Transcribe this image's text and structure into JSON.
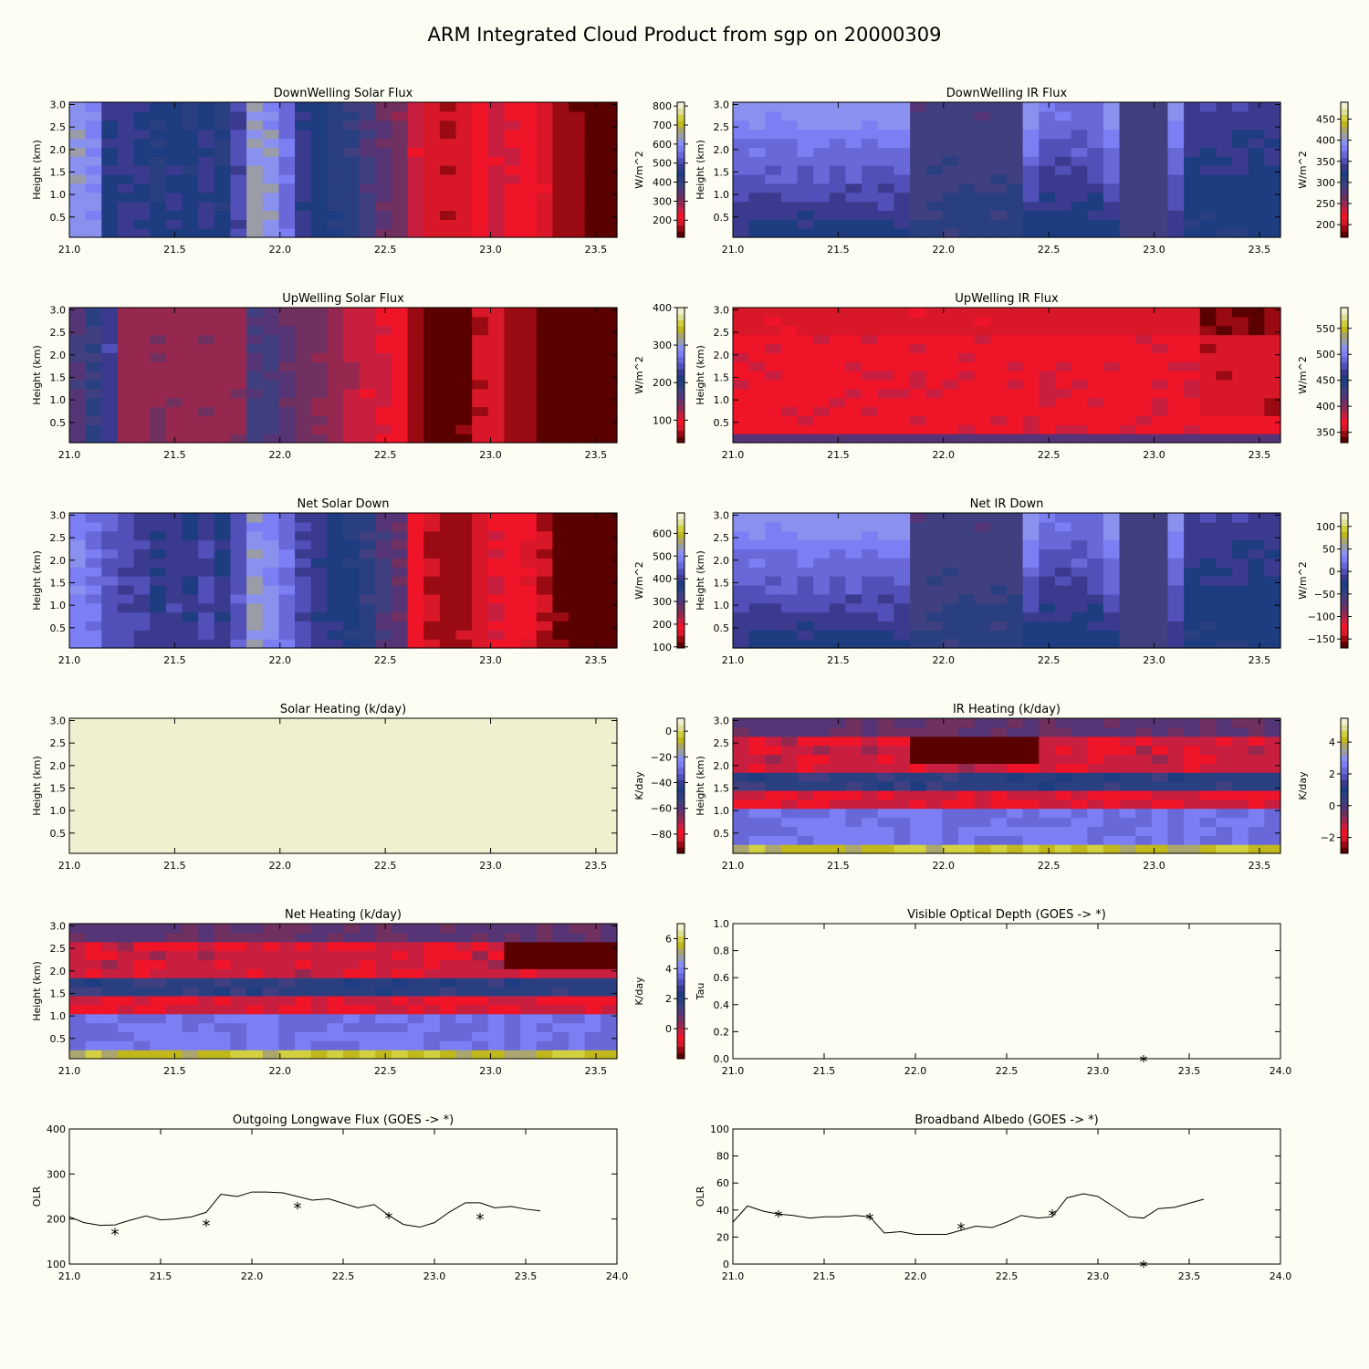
{
  "figure_title": "ARM Integrated Cloud Product from sgp on 20000309",
  "colors": {
    "background": "#fdfdf3",
    "colormap": [
      "#5a0000",
      "#9a0a12",
      "#d81828",
      "#f01428",
      "#c81e40",
      "#962850",
      "#703060",
      "#553575",
      "#404080",
      "#2a3f80",
      "#1e3c80",
      "#3a3a8f",
      "#5050b8",
      "#6868d8",
      "#7c7ef4",
      "#8a90ee",
      "#9a9ca8",
      "#aaa66e",
      "#c0b81c",
      "#d0d040",
      "#e0e098",
      "#f0f0d0"
    ]
  },
  "chart_data": [
    {
      "type": "heatmap",
      "title": "DownWelling Solar Flux",
      "ylabel": "Height (km)",
      "xlim": [
        21.0,
        23.6
      ],
      "ylim": [
        0.05,
        3.05
      ],
      "x_ticks": [
        "21.0",
        "21.5",
        "22.0",
        "22.5",
        "23.0",
        "23.5"
      ],
      "y_ticks": [
        "0.5",
        "1.0",
        "1.5",
        "2.0",
        "2.5",
        "3.0"
      ],
      "colorbar": {
        "label": "W/m^2",
        "ticks": [
          "200",
          "300",
          "400",
          "500",
          "600",
          "700",
          "800"
        ],
        "range": [
          110,
          820
        ]
      },
      "column_values": [
        620,
        600,
        460,
        480,
        470,
        440,
        460,
        450,
        470,
        440,
        510,
        630,
        620,
        560,
        480,
        450,
        420,
        410,
        380,
        340,
        320,
        250,
        200,
        180,
        190,
        220,
        250,
        240,
        230,
        200,
        160,
        150,
        130,
        120
      ]
    },
    {
      "type": "heatmap",
      "title": "DownWelling IR Flux",
      "ylabel": "Height (km)",
      "xlim": [
        21.0,
        23.6
      ],
      "ylim": [
        0.05,
        3.05
      ],
      "x_ticks": [
        "21.0",
        "21.5",
        "22.0",
        "22.5",
        "23.0",
        "23.5"
      ],
      "y_ticks": [
        "0.5",
        "1.0",
        "1.5",
        "2.0",
        "2.5",
        "3.0"
      ],
      "colorbar": {
        "label": "W/m^2",
        "ticks": [
          "200",
          "250",
          "300",
          "350",
          "400",
          "450"
        ],
        "range": [
          170,
          490
        ]
      }
    },
    {
      "type": "heatmap",
      "title": "UpWelling Solar Flux",
      "ylabel": "Height (km)",
      "xlim": [
        21.0,
        23.6
      ],
      "ylim": [
        0.05,
        3.05
      ],
      "x_ticks": [
        "21.0",
        "21.5",
        "22.0",
        "22.5",
        "23.0",
        "23.5"
      ],
      "y_ticks": [
        "0.5",
        "1.0",
        "1.5",
        "2.0",
        "2.5",
        "3.0"
      ],
      "colorbar": {
        "label": "W/m^2",
        "ticks": [
          "100",
          "200",
          "300",
          "400"
        ],
        "range": [
          40,
          400
        ]
      },
      "column_values": [
        170,
        190,
        230,
        130,
        130,
        140,
        135,
        130,
        135,
        130,
        135,
        170,
        175,
        160,
        150,
        140,
        130,
        120,
        110,
        105,
        100,
        60,
        50,
        45,
        55,
        75,
        80,
        70,
        65,
        50,
        40,
        45,
        40,
        40
      ]
    },
    {
      "type": "heatmap",
      "title": "UpWelling IR Flux",
      "ylabel": "Height (km)",
      "xlim": [
        21.0,
        23.6
      ],
      "ylim": [
        0.05,
        3.05
      ],
      "x_ticks": [
        "21.0",
        "21.5",
        "22.0",
        "22.5",
        "23.0",
        "23.5"
      ],
      "y_ticks": [
        "0.5",
        "1.0",
        "1.5",
        "2.0",
        "2.5",
        "3.0"
      ],
      "colorbar": {
        "label": "W/m^2",
        "ticks": [
          "350",
          "400",
          "450",
          "500",
          "550"
        ],
        "range": [
          330,
          590
        ]
      }
    },
    {
      "type": "heatmap",
      "title": "Net Solar Down",
      "ylabel": "Height (km)",
      "xlim": [
        21.0,
        23.6
      ],
      "ylim": [
        0.05,
        3.05
      ],
      "x_ticks": [
        "21.0",
        "21.5",
        "22.0",
        "22.5",
        "23.0",
        "23.5"
      ],
      "y_ticks": [
        "0.5",
        "1.0",
        "1.5",
        "2.0",
        "2.5",
        "3.0"
      ],
      "colorbar": {
        "label": "W/m^2",
        "ticks": [
          "100",
          "200",
          "300",
          "400",
          "500",
          "600"
        ],
        "range": [
          95,
          690
        ]
      },
      "column_values": [
        500,
        480,
        440,
        430,
        420,
        400,
        410,
        405,
        420,
        400,
        440,
        520,
        500,
        470,
        430,
        400,
        380,
        370,
        350,
        310,
        290,
        190,
        150,
        135,
        145,
        170,
        200,
        190,
        180,
        150,
        120,
        110,
        100,
        100
      ]
    },
    {
      "type": "heatmap",
      "title": "Net IR Down",
      "ylabel": "Height (km)",
      "xlim": [
        21.0,
        23.6
      ],
      "ylim": [
        0.05,
        3.05
      ],
      "x_ticks": [
        "21.0",
        "21.5",
        "22.0",
        "22.5",
        "23.0",
        "23.5"
      ],
      "y_ticks": [
        "0.5",
        "1.0",
        "1.5",
        "2.0",
        "2.5",
        "3.0"
      ],
      "colorbar": {
        "label": "W/m^2",
        "ticks": [
          "-150",
          "-100",
          "-50",
          "0",
          "50",
          "100"
        ],
        "range": [
          -170,
          130
        ]
      }
    },
    {
      "type": "heatmap",
      "title": "Solar Heating (k/day)",
      "ylabel": "Height (km)",
      "xlim": [
        21.0,
        23.6
      ],
      "ylim": [
        0.05,
        3.05
      ],
      "x_ticks": [
        "21.0",
        "21.5",
        "22.0",
        "22.5",
        "23.0",
        "23.5"
      ],
      "y_ticks": [
        "0.5",
        "1.0",
        "1.5",
        "2.0",
        "2.5",
        "3.0"
      ],
      "colorbar": {
        "label": "K/day",
        "ticks": [
          "-80",
          "-60",
          "-40",
          "-20",
          "0"
        ],
        "range": [
          -95,
          10
        ]
      }
    },
    {
      "type": "heatmap",
      "title": "IR Heating (k/day)",
      "ylabel": "Height (km)",
      "xlim": [
        21.0,
        23.6
      ],
      "ylim": [
        0.05,
        3.05
      ],
      "x_ticks": [
        "21.0",
        "21.5",
        "22.0",
        "22.5",
        "23.0",
        "23.5"
      ],
      "y_ticks": [
        "0.5",
        "1.0",
        "1.5",
        "2.0",
        "2.5",
        "3.0"
      ],
      "colorbar": {
        "label": "K/day",
        "ticks": [
          "-2",
          "0",
          "2",
          "4"
        ],
        "range": [
          -3,
          5.5
        ]
      }
    },
    {
      "type": "heatmap",
      "title": "Net Heating (k/day)",
      "ylabel": "Height (km)",
      "xlim": [
        21.0,
        23.6
      ],
      "ylim": [
        0.05,
        3.05
      ],
      "x_ticks": [
        "21.0",
        "21.5",
        "22.0",
        "22.5",
        "23.0",
        "23.5"
      ],
      "y_ticks": [
        "0.5",
        "1.0",
        "1.5",
        "2.0",
        "2.5",
        "3.0"
      ],
      "colorbar": {
        "label": "K/day",
        "ticks": [
          "0",
          "2",
          "4",
          "6"
        ],
        "range": [
          -2,
          7
        ]
      }
    },
    {
      "type": "scatter",
      "title": "Visible Optical Depth (GOES -> *)",
      "ylabel": "Tau",
      "xlim": [
        21.0,
        24.0
      ],
      "ylim": [
        0,
        1.0
      ],
      "x_ticks": [
        "21.0",
        "21.5",
        "22.0",
        "22.5",
        "23.0",
        "23.5",
        "24.0"
      ],
      "y_ticks": [
        "0.0",
        "0.2",
        "0.4",
        "0.6",
        "0.8",
        "1.0"
      ],
      "line": {
        "x": [],
        "y": []
      },
      "points": {
        "x": [
          23.25
        ],
        "y": [
          0.0
        ]
      }
    },
    {
      "type": "line",
      "title": "Outgoing Longwave Flux (GOES -> *)",
      "ylabel": "OLR",
      "xlim": [
        21.0,
        24.0
      ],
      "ylim": [
        100,
        400
      ],
      "x_ticks": [
        "21.0",
        "21.5",
        "22.0",
        "22.5",
        "23.0",
        "23.5",
        "24.0"
      ],
      "y_ticks": [
        "100",
        "200",
        "300",
        "400"
      ],
      "line": {
        "x": [
          21.0,
          21.08,
          21.17,
          21.25,
          21.33,
          21.42,
          21.5,
          21.58,
          21.67,
          21.75,
          21.83,
          21.92,
          22.0,
          22.08,
          22.17,
          22.25,
          22.33,
          22.42,
          22.5,
          22.58,
          22.67,
          22.75,
          22.83,
          22.92,
          23.0,
          23.08,
          23.17,
          23.25,
          23.33,
          23.42,
          23.5,
          23.58
        ],
        "y": [
          205,
          192,
          186,
          187,
          197,
          207,
          198,
          200,
          205,
          215,
          255,
          250,
          260,
          260,
          258,
          250,
          242,
          245,
          235,
          225,
          232,
          208,
          188,
          182,
          192,
          215,
          236,
          236,
          225,
          228,
          222,
          218
        ]
      },
      "points": {
        "x": [
          21.25,
          21.75,
          22.25,
          22.75,
          23.25
        ],
        "y": [
          172,
          191,
          230,
          207,
          205
        ]
      }
    },
    {
      "type": "line",
      "title": "Broadband Albedo (GOES -> *)",
      "ylabel": "OLR",
      "xlim": [
        21.0,
        24.0
      ],
      "ylim": [
        0,
        100
      ],
      "x_ticks": [
        "21.0",
        "21.5",
        "22.0",
        "22.5",
        "23.0",
        "23.5",
        "24.0"
      ],
      "y_ticks": [
        "0",
        "20",
        "40",
        "60",
        "80",
        "100"
      ],
      "line": {
        "x": [
          21.0,
          21.08,
          21.17,
          21.25,
          21.33,
          21.42,
          21.5,
          21.58,
          21.67,
          21.75,
          21.83,
          21.92,
          22.0,
          22.08,
          22.17,
          22.25,
          22.33,
          22.42,
          22.5,
          22.58,
          22.67,
          22.75,
          22.83,
          22.92,
          23.0,
          23.08,
          23.17,
          23.25,
          23.33,
          23.42,
          23.5,
          23.58
        ],
        "y": [
          31,
          43,
          39,
          37,
          36,
          34,
          35,
          35,
          36,
          35,
          23,
          24,
          22,
          22,
          22,
          25,
          28,
          27,
          31,
          36,
          34,
          35,
          49,
          52,
          50,
          43,
          35,
          34,
          41,
          42,
          45,
          48
        ]
      },
      "points": {
        "x": [
          21.25,
          21.75,
          22.25,
          22.75,
          23.25
        ],
        "y": [
          37,
          35,
          28,
          38,
          0
        ]
      }
    }
  ]
}
